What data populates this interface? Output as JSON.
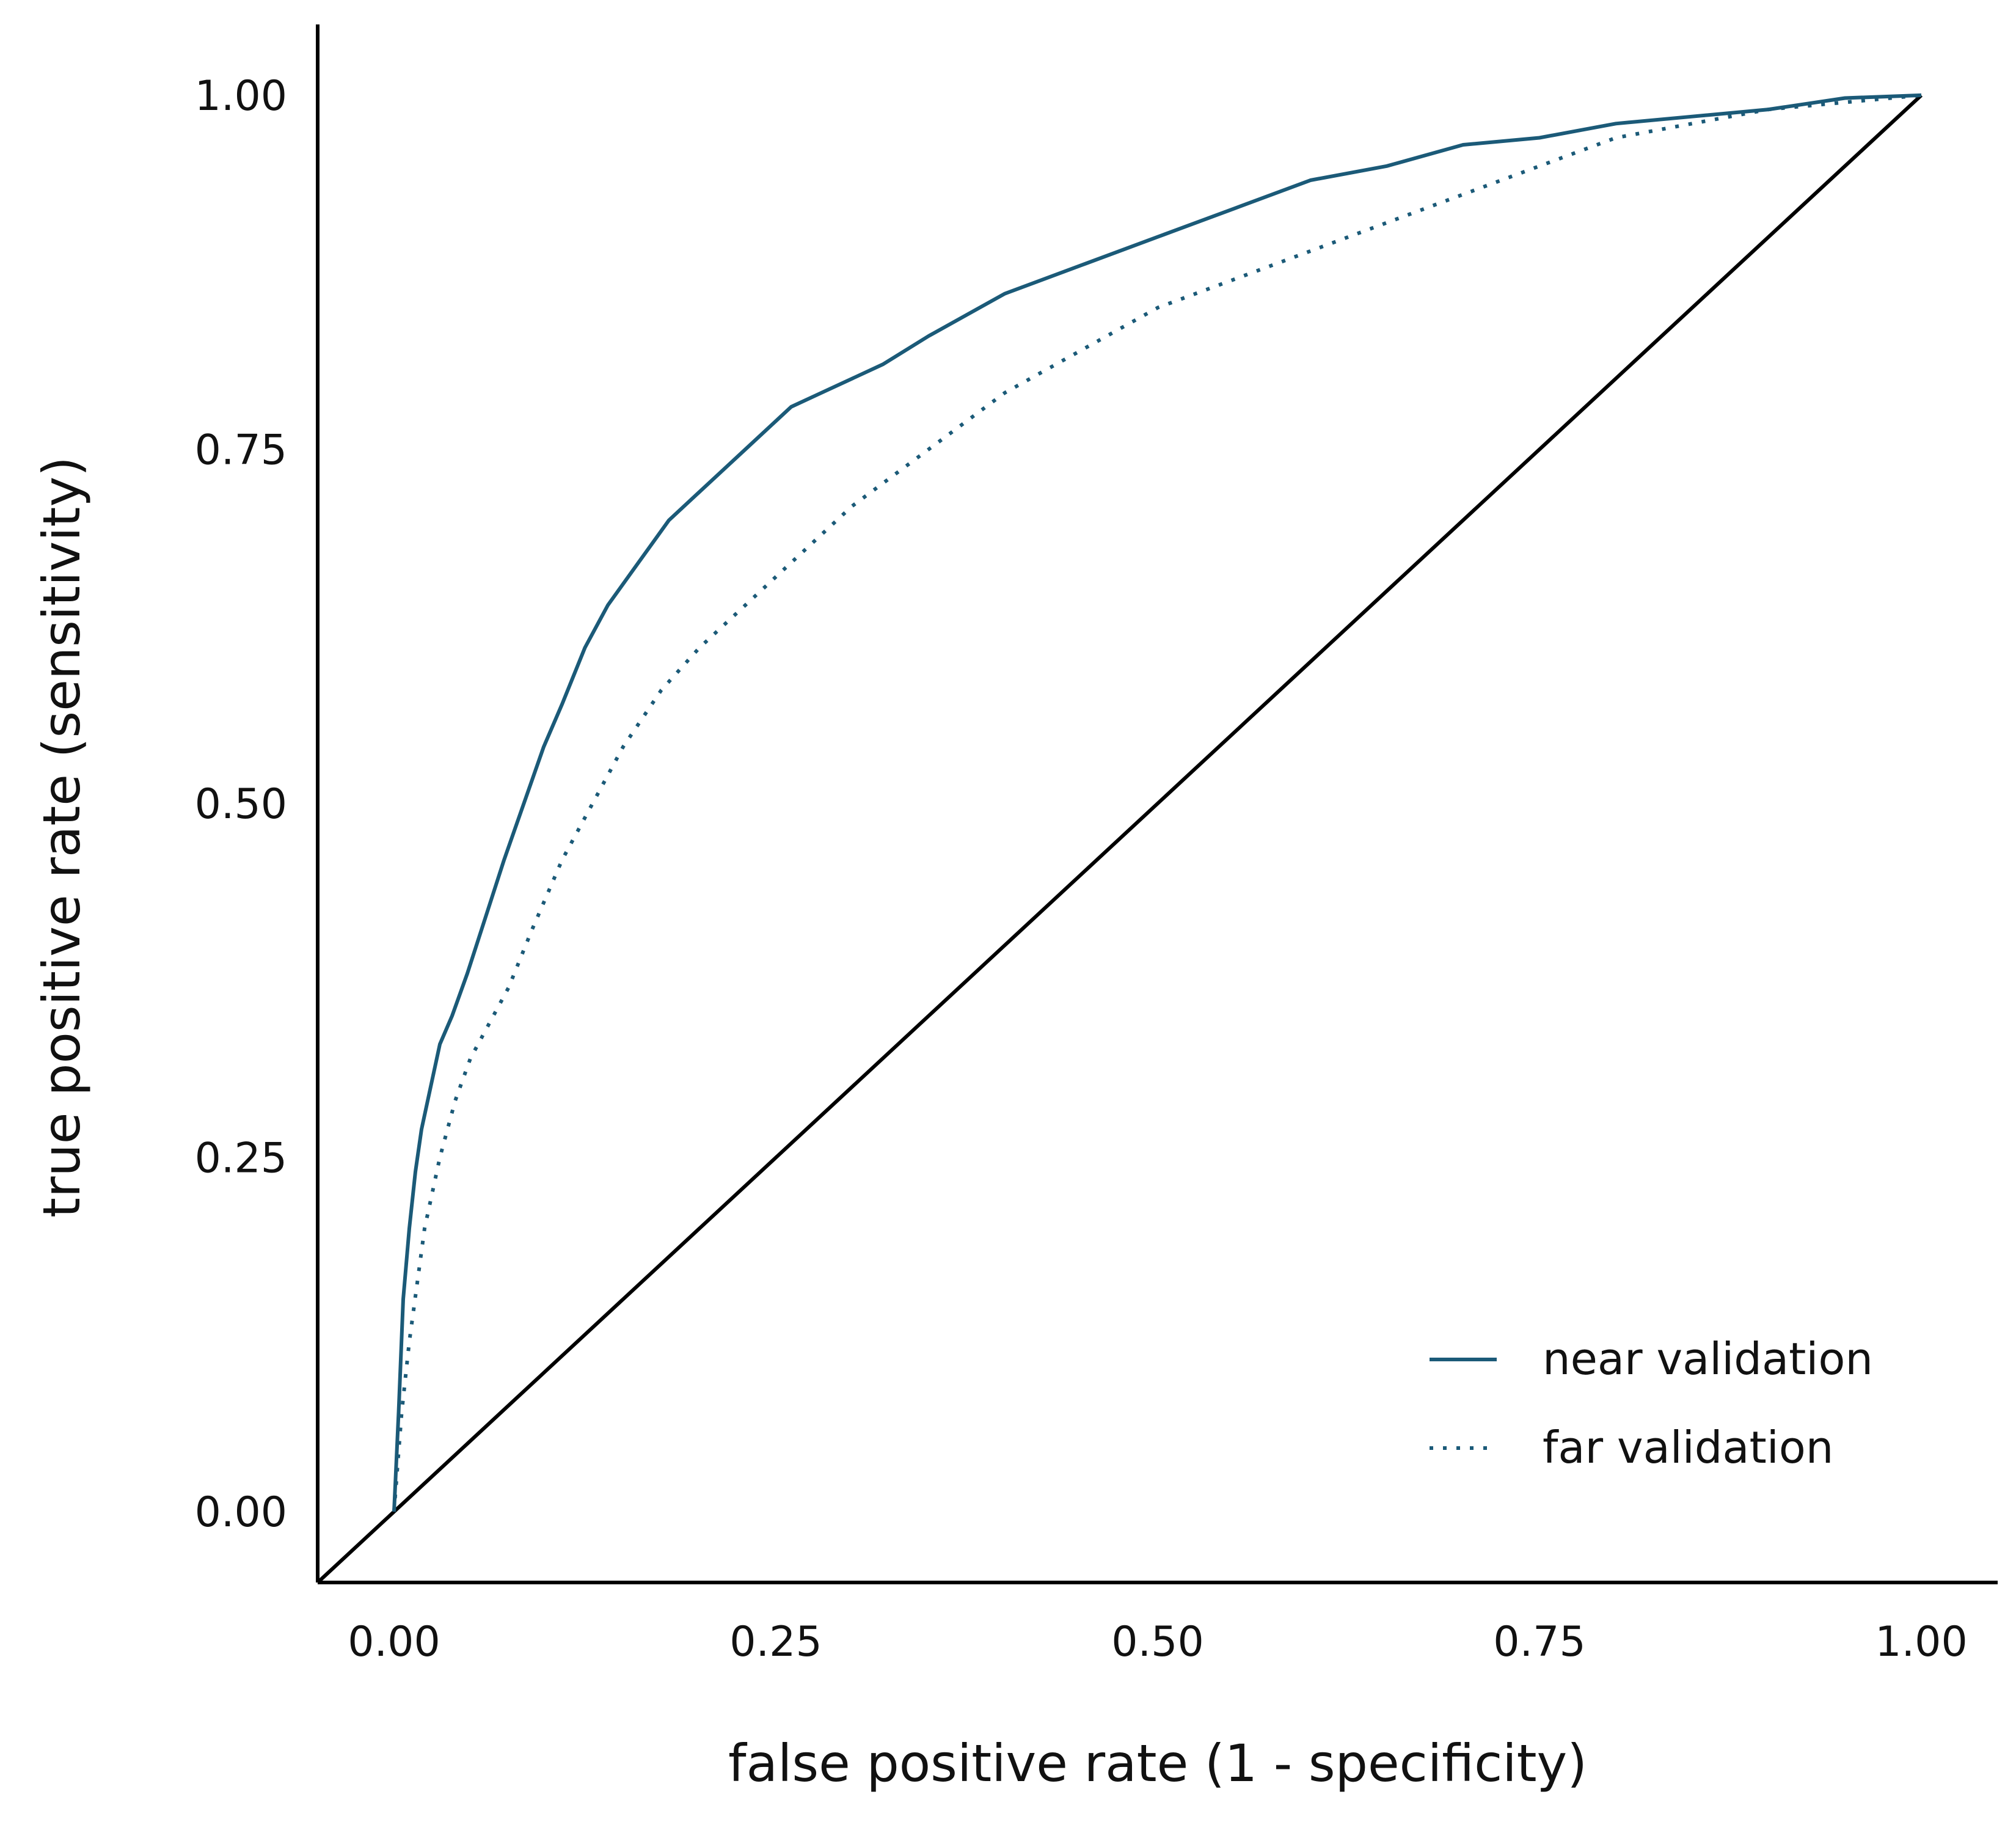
{
  "chart_data": {
    "type": "line",
    "xlabel": "false positive rate (1 - specificity)",
    "ylabel": "true positive rate (sensitivity)",
    "xlim": [
      -0.05,
      1.05
    ],
    "ylim": [
      -0.05,
      1.05
    ],
    "x_ticks": [
      "0.00",
      "0.25",
      "0.50",
      "0.75",
      "1.00"
    ],
    "y_ticks": [
      "0.00",
      "0.25",
      "0.50",
      "0.75",
      "1.00"
    ],
    "grid": false,
    "legend_position": "bottom-right",
    "reference_line": {
      "x": [
        0,
        1
      ],
      "y": [
        0,
        1
      ]
    },
    "series": [
      {
        "name": "near validation",
        "style": "solid",
        "color": "#1b5a78",
        "x": [
          0.0,
          0.003,
          0.006,
          0.01,
          0.014,
          0.018,
          0.024,
          0.03,
          0.038,
          0.048,
          0.06,
          0.072,
          0.085,
          0.098,
          0.11,
          0.125,
          0.14,
          0.16,
          0.18,
          0.2,
          0.23,
          0.26,
          0.28,
          0.32,
          0.35,
          0.4,
          0.45,
          0.5,
          0.55,
          0.6,
          0.65,
          0.7,
          0.75,
          0.8,
          0.85,
          0.9,
          0.95,
          1.0
        ],
        "y": [
          0.0,
          0.07,
          0.15,
          0.2,
          0.24,
          0.27,
          0.3,
          0.33,
          0.35,
          0.38,
          0.42,
          0.46,
          0.5,
          0.54,
          0.57,
          0.61,
          0.64,
          0.67,
          0.7,
          0.72,
          0.75,
          0.78,
          0.79,
          0.81,
          0.83,
          0.86,
          0.88,
          0.9,
          0.92,
          0.94,
          0.95,
          0.965,
          0.97,
          0.98,
          0.985,
          0.99,
          0.998,
          1.0
        ]
      },
      {
        "name": "far validation",
        "style": "dotted",
        "color": "#1b5a78",
        "x": [
          0.0,
          0.005,
          0.01,
          0.015,
          0.02,
          0.03,
          0.04,
          0.05,
          0.06,
          0.075,
          0.09,
          0.11,
          0.13,
          0.15,
          0.175,
          0.2,
          0.23,
          0.26,
          0.3,
          0.35,
          0.4,
          0.45,
          0.5,
          0.55,
          0.6,
          0.65,
          0.7,
          0.75,
          0.8,
          0.85,
          0.9,
          0.95,
          1.0
        ],
        "y": [
          0.0,
          0.07,
          0.12,
          0.16,
          0.2,
          0.25,
          0.29,
          0.32,
          0.34,
          0.37,
          0.41,
          0.46,
          0.5,
          0.54,
          0.58,
          0.61,
          0.64,
          0.67,
          0.71,
          0.75,
          0.79,
          0.82,
          0.85,
          0.87,
          0.89,
          0.91,
          0.93,
          0.95,
          0.97,
          0.98,
          0.99,
          0.995,
          1.0
        ]
      }
    ]
  }
}
